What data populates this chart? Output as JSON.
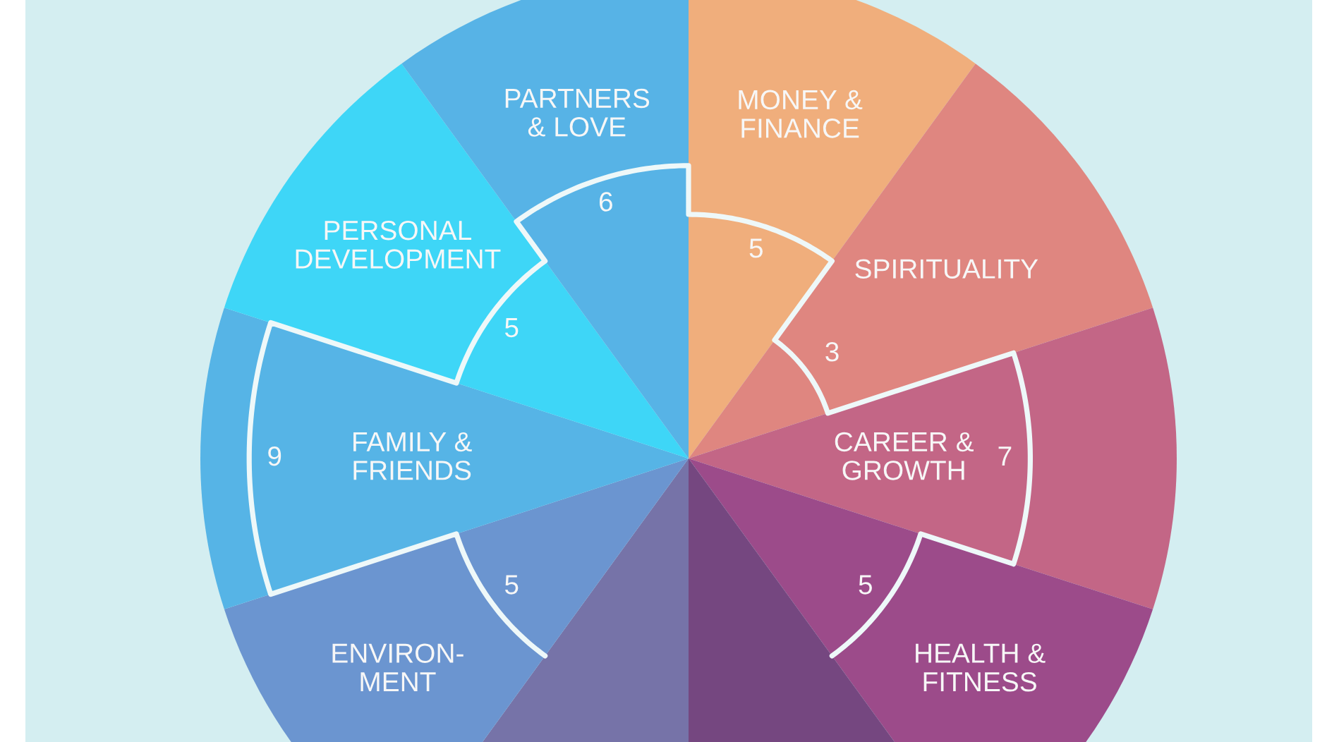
{
  "chart_data": {
    "type": "other",
    "categories": [
      "MONEY &\nFINANCE",
      "SPIRITUALITY",
      "CAREER &\nGROWTH",
      "HEALTH &\nFITNESS",
      null,
      null,
      "ENVIRON-\nMENT",
      "FAMILY &\nFRIENDS",
      "PERSONAL\nDEVELOPMENT",
      "PARTNERS\n& LOVE"
    ],
    "values": [
      5,
      3,
      7,
      5,
      null,
      null,
      5,
      9,
      5,
      6
    ],
    "colors": [
      "#f0ae7c",
      "#df8680",
      "#c36686",
      "#9c4b8a",
      "#754780",
      "#7673a8",
      "#6b95d0",
      "#56b4e6",
      "#3ed6f7",
      "#57b3e6"
    ],
    "data_labels": true
  }
}
